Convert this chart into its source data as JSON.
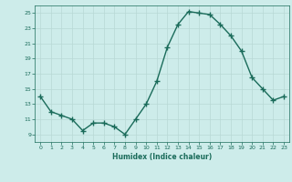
{
  "x": [
    0,
    1,
    2,
    3,
    4,
    5,
    6,
    7,
    8,
    9,
    10,
    11,
    12,
    13,
    14,
    15,
    16,
    17,
    18,
    19,
    20,
    21,
    22,
    23
  ],
  "y": [
    14,
    12,
    11.5,
    11,
    9.5,
    10.5,
    10.5,
    10,
    9,
    11,
    13,
    16,
    20.5,
    23.5,
    25.2,
    25,
    24.8,
    23.5,
    22,
    20,
    16.5,
    15,
    13.5,
    14
  ],
  "xlim": [
    -0.5,
    23.5
  ],
  "ylim": [
    8.0,
    26.0
  ],
  "yticks": [
    9,
    11,
    13,
    15,
    17,
    19,
    21,
    23,
    25
  ],
  "xticks": [
    0,
    1,
    2,
    3,
    4,
    5,
    6,
    7,
    8,
    9,
    10,
    11,
    12,
    13,
    14,
    15,
    16,
    17,
    18,
    19,
    20,
    21,
    22,
    23
  ],
  "xlabel": "Humidex (Indice chaleur)",
  "line_color": "#1a6b5a",
  "bg_color": "#cdecea",
  "grid_color": "#b8d8d5",
  "tick_color": "#1a6b5a",
  "label_color": "#1a6b5a",
  "marker": "+",
  "linewidth": 1.0,
  "markersize": 4,
  "markeredgewidth": 1.0
}
